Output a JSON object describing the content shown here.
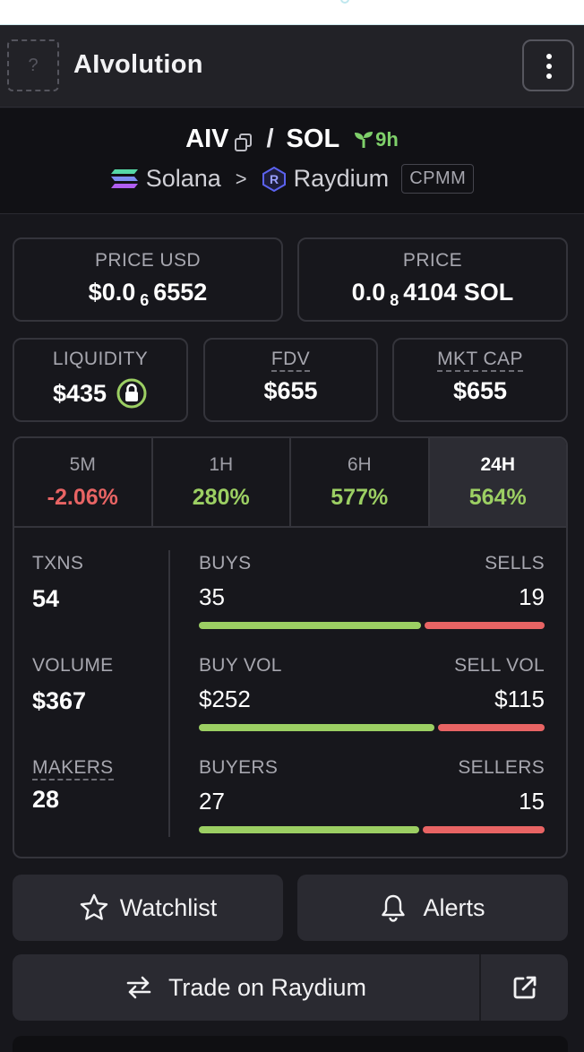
{
  "header": {
    "token_name": "AIvolution",
    "logo_placeholder": "?"
  },
  "pair": {
    "base": "AIV",
    "quote": "SOL",
    "age": "9h",
    "chain": "Solana",
    "dex": "Raydium",
    "pool_type": "CPMM"
  },
  "prices": {
    "usd_label": "PRICE USD",
    "usd_prefix": "$0.0",
    "usd_zeros": "6",
    "usd_digits": "6552",
    "native_label": "PRICE",
    "native_prefix": "0.0",
    "native_zeros": "8",
    "native_digits": "4104 SOL"
  },
  "stats": {
    "liquidity_label": "LIQUIDITY",
    "liquidity_value": "$435",
    "fdv_label": "FDV",
    "fdv_value": "$655",
    "mktcap_label": "MKT CAP",
    "mktcap_value": "$655"
  },
  "timeframes": [
    {
      "label": "5M",
      "value": "-2.06%"
    },
    {
      "label": "1H",
      "value": "280%"
    },
    {
      "label": "6H",
      "value": "577%"
    },
    {
      "label": "24H",
      "value": "564%"
    }
  ],
  "activity": {
    "txns_label": "TXNS",
    "txns_value": "54",
    "volume_label": "VOLUME",
    "volume_value": "$367",
    "makers_label": "MAKERS",
    "makers_value": "28",
    "buys_label": "BUYS",
    "buys_value": "35",
    "sells_label": "SELLS",
    "sells_value": "19",
    "buys_ratio": 0.648,
    "buyvol_label": "BUY VOL",
    "buyvol_value": "$252",
    "sellvol_label": "SELL VOL",
    "sellvol_value": "$115",
    "buyvol_ratio": 0.687,
    "buyers_label": "BUYERS",
    "buyers_value": "27",
    "sellers_label": "SELLERS",
    "sellers_value": "15",
    "buyers_ratio": 0.643
  },
  "actions": {
    "watchlist": "Watchlist",
    "alerts": "Alerts",
    "trade": "Trade on Raydium"
  },
  "colors": {
    "positive": "#9ccf63",
    "negative": "#e86464",
    "accent_green": "#7fd06a"
  }
}
